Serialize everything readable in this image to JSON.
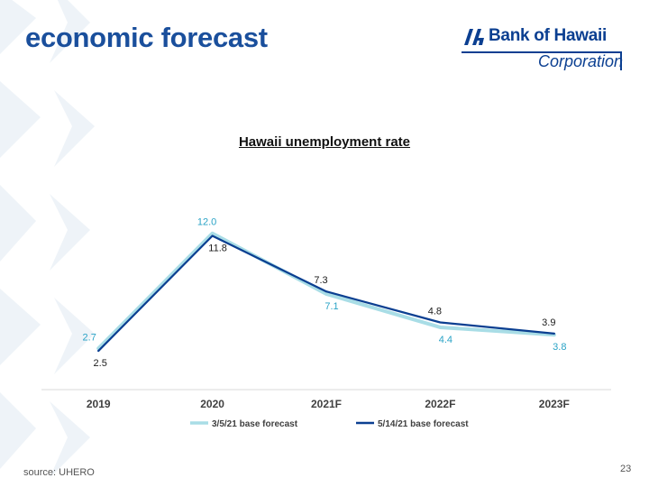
{
  "header": {
    "title": "economic forecast",
    "logo_name": "Bank of Hawaii",
    "logo_sub": "Corporation"
  },
  "footer": {
    "source": "source: UHERO",
    "page_number": "23"
  },
  "colors": {
    "title": "#1a4f9c",
    "series_old": "#a9dde6",
    "series_old_label": "#2aa3c6",
    "series_new": "#0b3f91",
    "axis": "#d9d9d9",
    "pattern": "#eef3f8"
  },
  "chart_data": {
    "type": "line",
    "title": "Hawaii unemployment rate",
    "categories": [
      "2019",
      "2020",
      "2021F",
      "2022F",
      "2023F"
    ],
    "series": [
      {
        "name": "3/5/21 base forecast",
        "values": [
          2.7,
          12.0,
          7.1,
          4.4,
          3.8
        ],
        "labels": [
          "2.7",
          "12.0",
          "7.1",
          "4.4",
          "3.8"
        ]
      },
      {
        "name": "5/14/21 base forecast",
        "values": [
          2.5,
          11.8,
          7.3,
          4.8,
          3.9
        ],
        "labels": [
          "2.5",
          "11.8",
          "7.3",
          "4.8",
          "3.9"
        ]
      }
    ],
    "ylim": [
      1.7,
      12.2
    ],
    "grid": false,
    "legend": "bottom"
  }
}
